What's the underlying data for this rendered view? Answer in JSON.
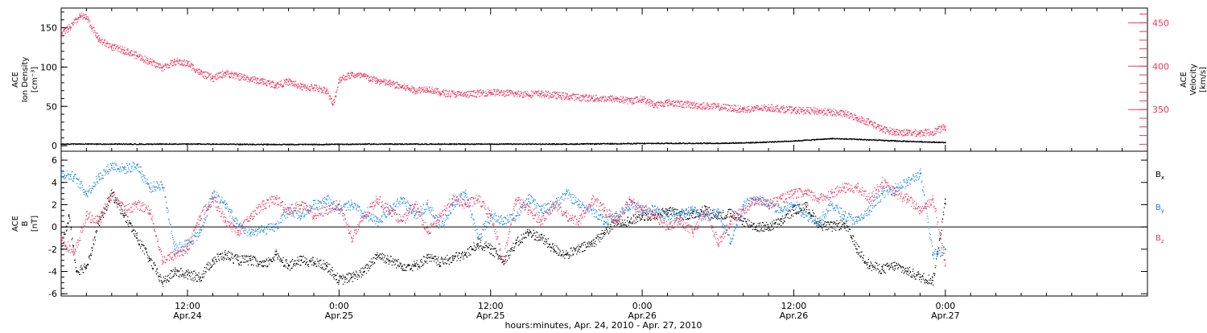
{
  "colors": {
    "black": "#000000",
    "pink": "#e8385f",
    "blue": "#1a86e6",
    "axis": "#000000"
  },
  "x_axis": {
    "range_hours": [
      0,
      86
    ],
    "ticks": [
      {
        "hour": 10,
        "time": "12:00",
        "date": "Apr.24"
      },
      {
        "hour": 22,
        "time": "0:00",
        "date": "Apr.25"
      },
      {
        "hour": 34,
        "time": "12:00",
        "date": "Apr.25"
      },
      {
        "hour": 46,
        "time": "0:00",
        "date": "Apr.26"
      },
      {
        "hour": 58,
        "time": "12:00",
        "date": "Apr.26"
      },
      {
        "hour": 70,
        "time": "0:00",
        "date": "Apr.27"
      }
    ],
    "label": "hours:minutes, Apr. 24, 2010 - Apr. 27, 2010"
  },
  "chart_data": [
    {
      "type": "scatter",
      "panel": "top",
      "left_axis": {
        "label_lines": [
          "ACE",
          "Ion Density",
          "[cm⁻³]"
        ],
        "ylim": [
          -7,
          175
        ],
        "ticks": [
          "0",
          "50",
          "100",
          "150"
        ]
      },
      "right_axis": {
        "label_lines": [
          "ACE",
          "Velocity",
          "[km/s]"
        ],
        "ylim": [
          302,
          467
        ],
        "ticks": [
          "350",
          "400",
          "450"
        ]
      },
      "series": [
        {
          "name": "",
          "axis": "left",
          "color": "#000000",
          "x": [
            0,
            4,
            8,
            12,
            16,
            20,
            24,
            28,
            32,
            36,
            40,
            44,
            48,
            52,
            55,
            58,
            61,
            63,
            66,
            68,
            70
          ],
          "y": [
            2,
            2,
            2,
            2,
            1.5,
            1.5,
            2,
            2,
            2,
            2,
            2,
            2.5,
            3,
            3,
            4,
            6,
            9,
            8,
            6,
            5,
            4
          ]
        },
        {
          "name": "",
          "axis": "right",
          "color": "#e8385f",
          "x": [
            0,
            0.7,
            1.5,
            2,
            3,
            4,
            5,
            6,
            7,
            8,
            9,
            10,
            11,
            12,
            13,
            14,
            15,
            16,
            17,
            18,
            19,
            20,
            21,
            21.5,
            22,
            23,
            24,
            25,
            26,
            27,
            28,
            29,
            30,
            32,
            34,
            36,
            38,
            40,
            42,
            44,
            45,
            46,
            47,
            48,
            50,
            52,
            54,
            56,
            58,
            60,
            62,
            63,
            64,
            65,
            66,
            67,
            68,
            69,
            70
          ],
          "y": [
            437,
            445,
            458,
            455,
            430,
            422,
            418,
            412,
            405,
            398,
            405,
            403,
            392,
            386,
            392,
            388,
            385,
            382,
            378,
            382,
            376,
            375,
            372,
            355,
            385,
            390,
            388,
            383,
            380,
            376,
            372,
            374,
            369,
            367,
            370,
            368,
            368,
            365,
            363,
            362,
            360,
            362,
            355,
            358,
            355,
            353,
            350,
            352,
            349,
            348,
            345,
            340,
            335,
            327,
            324,
            323,
            323,
            324,
            330
          ]
        }
      ]
    },
    {
      "type": "scatter",
      "panel": "bottom",
      "left_axis": {
        "label_lines": [
          "ACE",
          "B",
          "[nT]"
        ],
        "ylim": [
          -6.2,
          6.8
        ],
        "ticks": [
          "-6",
          "-4",
          "-2",
          "0",
          "2",
          "4",
          "6"
        ]
      },
      "zero_line": true,
      "series": [
        {
          "name": "Bx",
          "color": "#000000",
          "x": [
            0,
            0.6,
            1.2,
            2,
            3,
            4,
            5,
            6,
            7,
            8,
            9,
            10,
            11,
            12,
            13,
            14,
            15,
            16,
            17,
            18,
            19,
            20,
            21,
            22,
            23,
            24,
            25,
            26,
            27,
            28,
            29,
            30,
            31,
            32,
            33,
            34,
            35,
            36,
            37,
            38,
            39,
            40,
            41,
            42,
            43,
            44,
            45,
            46,
            47,
            48,
            49,
            50,
            51,
            52,
            53,
            54,
            55,
            56,
            57,
            58,
            59,
            60,
            61,
            62,
            63,
            64,
            65,
            66,
            67,
            68,
            69,
            70
          ],
          "y": [
            -2,
            1,
            -4,
            -3.5,
            0.5,
            3,
            1,
            -1,
            -3,
            -5,
            -4,
            -4.3,
            -4.5,
            -3,
            -2.5,
            -3,
            -3,
            -3.5,
            -2.5,
            -3.5,
            -3,
            -3.2,
            -3.5,
            -4.8,
            -4.5,
            -4,
            -2.5,
            -3,
            -3.5,
            -3.5,
            -2.8,
            -3.2,
            -2.8,
            -2.5,
            -1.5,
            -2,
            -3,
            -1.5,
            -0.5,
            -1,
            -2,
            -2.5,
            -2,
            -1.5,
            -0.5,
            0.5,
            0.5,
            1,
            1,
            1.5,
            1,
            1.2,
            1.5,
            1,
            1.2,
            0.5,
            0,
            0,
            0.5,
            1.5,
            1.8,
            0.2,
            0,
            0.3,
            -2,
            -3.5,
            -3.8,
            -3.5,
            -4,
            -4.5,
            -4.8,
            2.5
          ]
        },
        {
          "name": "By",
          "color": "#1a86e6",
          "x": [
            0,
            1,
            2,
            3,
            4,
            5,
            6,
            7,
            8,
            9,
            10,
            11,
            12,
            13,
            14,
            15,
            16,
            17,
            18,
            19,
            20,
            21,
            22,
            23,
            24,
            25,
            26,
            27,
            28,
            29,
            30,
            31,
            32,
            33,
            34,
            35,
            36,
            37,
            38,
            39,
            40,
            41,
            42,
            43,
            44,
            45,
            46,
            47,
            48,
            49,
            50,
            51,
            52,
            53,
            54,
            55,
            56,
            57,
            58,
            59,
            60,
            61,
            62,
            63,
            64,
            65,
            66,
            67,
            68,
            69,
            70
          ],
          "y": [
            4.8,
            4.5,
            3,
            4.5,
            5.5,
            5.2,
            5.5,
            3.5,
            3.8,
            -2,
            -1.5,
            -0.5,
            3,
            2,
            0,
            -0.5,
            -0.3,
            0,
            1.5,
            1,
            2,
            2.5,
            1.5,
            2,
            1,
            0.5,
            1.5,
            2.5,
            1,
            2,
            0,
            2,
            3,
            -1,
            1,
            0.5,
            1,
            2.5,
            1.5,
            2,
            3,
            2,
            1.5,
            0.5,
            1,
            2,
            1.5,
            1.5,
            1,
            1.2,
            1.5,
            1,
            1.3,
            -1.5,
            2,
            2.5,
            2,
            1.5,
            2,
            1,
            0.5,
            2,
            1,
            0.5,
            1.5,
            3,
            3.5,
            4,
            4.8,
            -2.5,
            -2
          ]
        },
        {
          "name": "Bz",
          "color": "#e8385f",
          "x": [
            0,
            1,
            2,
            3,
            4,
            5,
            6,
            7,
            8,
            9,
            10,
            11,
            12,
            13,
            14,
            15,
            16,
            17,
            18,
            19,
            20,
            21,
            22,
            23,
            24,
            25,
            26,
            27,
            28,
            29,
            30,
            31,
            32,
            33,
            34,
            35,
            36,
            37,
            38,
            39,
            40,
            41,
            42,
            43,
            44,
            45,
            46,
            47,
            48,
            49,
            50,
            51,
            52,
            53,
            54,
            55,
            56,
            57,
            58,
            59,
            60,
            61,
            62,
            63,
            64,
            65,
            66,
            67,
            68,
            69,
            70
          ],
          "y": [
            -1,
            -2.5,
            1,
            0.5,
            3,
            1.5,
            2,
            1.5,
            -3,
            -2.5,
            -2,
            1,
            2.5,
            0.5,
            -0.5,
            1,
            2,
            2.5,
            1.5,
            2,
            1,
            1.5,
            2,
            -1,
            1,
            2.5,
            1.5,
            0.5,
            2,
            -0.5,
            1,
            2.5,
            2,
            2.5,
            1,
            -3,
            2.5,
            1.5,
            0.5,
            2,
            1,
            0.5,
            2.5,
            1.5,
            0.5,
            2.5,
            1.5,
            1,
            0,
            0.5,
            -0.5,
            1.5,
            -1.5,
            0.5,
            1.5,
            2.5,
            2,
            2.5,
            3,
            3,
            2.5,
            3,
            3.5,
            3.5,
            2.5,
            4,
            3,
            2.5,
            1.5,
            2.5,
            -3.5
          ]
        }
      ],
      "legend": {
        "placement": "right",
        "entries": [
          {
            "base": "B",
            "sub": "x",
            "color": "#000000"
          },
          {
            "base": "B",
            "sub": "y",
            "color": "#1a86e6"
          },
          {
            "base": "B",
            "sub": "z",
            "color": "#e8385f"
          }
        ]
      }
    }
  ]
}
